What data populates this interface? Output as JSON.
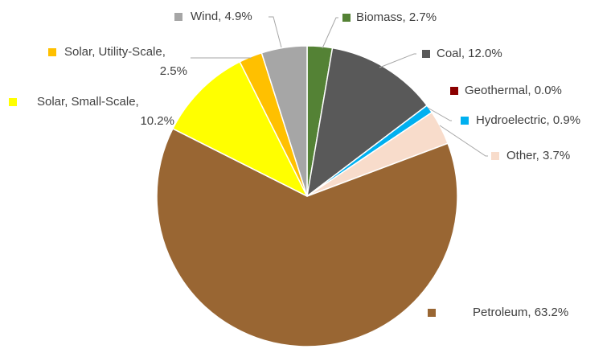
{
  "chart_data": {
    "type": "pie",
    "title": "",
    "categories": [
      "Biomass",
      "Coal",
      "Geothermal",
      "Hydroelectric",
      "Other",
      "Petroleum",
      "Solar, Small-Scale",
      "Solar, Utility-Scale",
      "Wind"
    ],
    "values": [
      2.7,
      12.0,
      0.0,
      0.9,
      3.7,
      63.2,
      10.2,
      2.5,
      4.9
    ],
    "value_labels": [
      "2.7%",
      "12.0%",
      "0.0%",
      "0.9%",
      "3.7%",
      "63.2%",
      "10.2%",
      "2.5%",
      "4.9%"
    ],
    "colors": [
      "#548235",
      "#595959",
      "#8b0000",
      "#00b0f0",
      "#f8dccb",
      "#996633",
      "#ffff00",
      "#ffc000",
      "#a6a6a6"
    ],
    "data_label_format": "{category}, {value}%",
    "start_angle": "top, clockwise"
  }
}
